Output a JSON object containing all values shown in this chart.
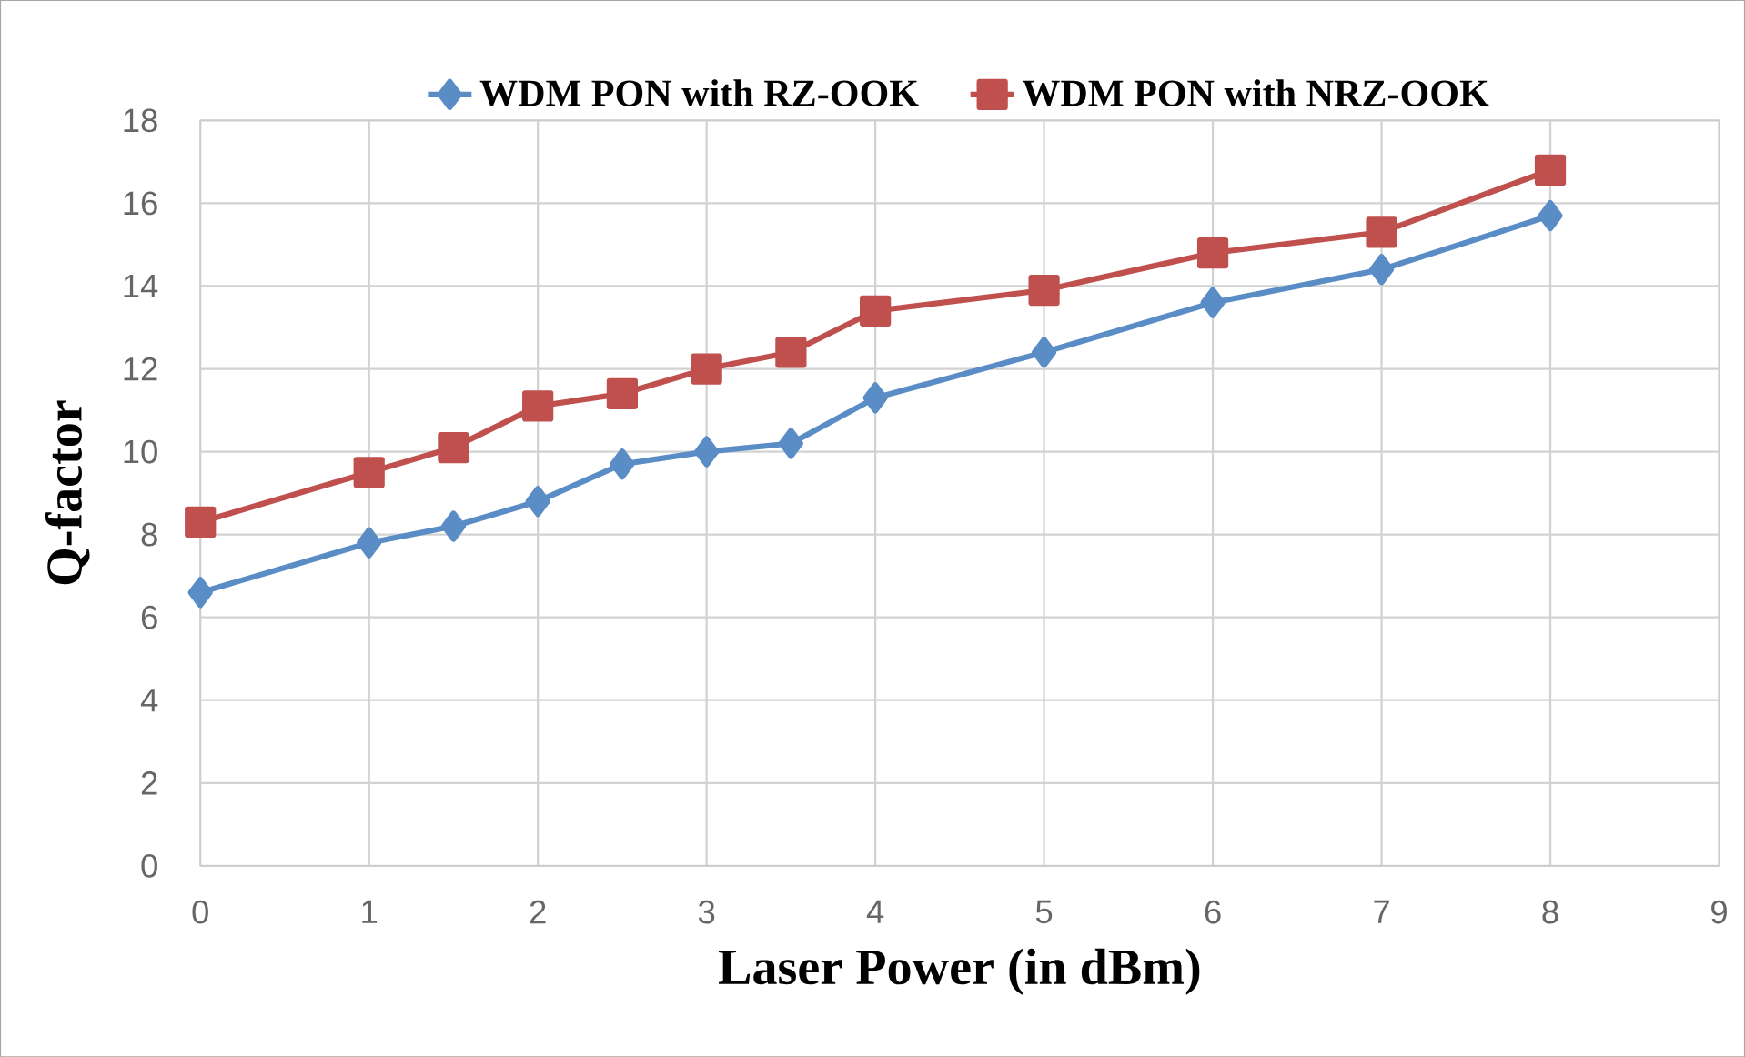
{
  "chart_data": {
    "type": "line",
    "xlabel": "Laser Power (in dBm)",
    "ylabel": "Q-factor",
    "xlim": [
      0,
      9
    ],
    "xticks": [
      0,
      1,
      2,
      3,
      4,
      5,
      6,
      7,
      8,
      9
    ],
    "ylim": [
      0,
      18
    ],
    "yticks": [
      0,
      2,
      4,
      6,
      8,
      10,
      12,
      14,
      16,
      18
    ],
    "grid": true,
    "legend": "top",
    "line_style": "solid",
    "x": [
      0,
      1,
      1.5,
      2,
      2.5,
      3,
      3.5,
      4,
      5,
      6,
      7,
      8
    ],
    "series": [
      {
        "name": "WDM PON with RZ-OOK",
        "color": "#5a8cc6",
        "marker": "diamond",
        "values": [
          6.6,
          7.8,
          8.2,
          8.8,
          9.7,
          10.0,
          10.2,
          11.3,
          12.4,
          13.6,
          14.4,
          15.7
        ]
      },
      {
        "name": "WDM PON with NRZ-OOK",
        "color": "#c0504d",
        "marker": "square",
        "values": [
          8.3,
          9.5,
          10.1,
          11.1,
          11.4,
          12.0,
          12.4,
          13.4,
          13.9,
          14.8,
          15.3,
          16.8
        ]
      }
    ]
  }
}
